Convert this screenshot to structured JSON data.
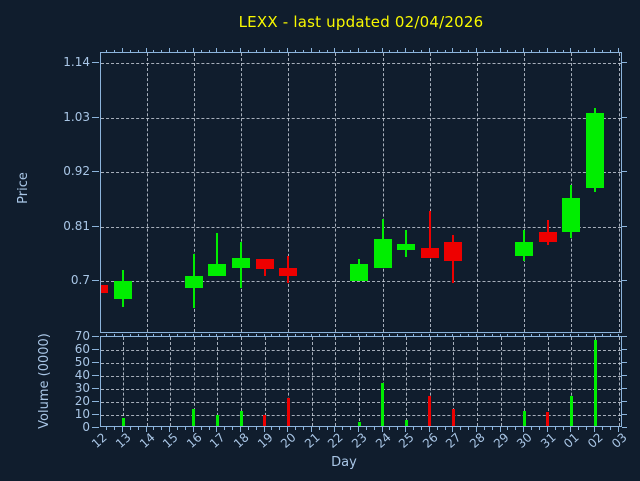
{
  "title": {
    "text": "LEXX - last updated 02/04/2026",
    "color": "#f8f800"
  },
  "colors": {
    "background": "#101d2d",
    "spine": "#8cb4dc",
    "tick_label": "#a9c6e6",
    "grid": "rgba(205,213,222,0.8)",
    "up": "#00ee00",
    "down": "#ee0000"
  },
  "price_axis": {
    "label": "Price",
    "ticks": [
      "1.14",
      "1.03",
      "0.92",
      "0.81",
      "0.7"
    ]
  },
  "volume_axis": {
    "label": "Volume (0000)",
    "ticks": [
      "70",
      "60",
      "50",
      "40",
      "30",
      "20",
      "10",
      "0"
    ]
  },
  "x_axis": {
    "label": "Day"
  },
  "chart_data": {
    "type": "candlestick",
    "title": "LEXX - last updated 02/04/2026",
    "xlabel": "Day",
    "ylabel_price": "Price",
    "ylabel_volume": "Volume (0000)",
    "legend": "none",
    "grid": true,
    "x_ticklabels": [
      "12",
      "13",
      "14",
      "15",
      "16",
      "17",
      "18",
      "19",
      "20",
      "21",
      "22",
      "23",
      "24",
      "25",
      "26",
      "27",
      "28",
      "29",
      "30",
      "31",
      "01",
      "02",
      "03"
    ],
    "price_ticks": [
      0.7,
      0.81,
      0.92,
      1.03,
      1.14
    ],
    "price_ylim": [
      0.593,
      1.161
    ],
    "volume_ticks": [
      0,
      10,
      20,
      30,
      40,
      50,
      60,
      70
    ],
    "volume_ylim": [
      0,
      70
    ],
    "up_color": "#00ee00",
    "down_color": "#ee0000",
    "candles": [
      {
        "day": "12",
        "open": 0.693,
        "high": 0.693,
        "low": 0.676,
        "close": 0.676,
        "volume": 0
      },
      {
        "day": "13",
        "open": 0.664,
        "high": 0.722,
        "low": 0.648,
        "close": 0.701,
        "volume": 8
      },
      {
        "day": "16",
        "open": 0.687,
        "high": 0.755,
        "low": 0.646,
        "close": 0.71,
        "volume": 15
      },
      {
        "day": "17",
        "open": 0.71,
        "high": 0.797,
        "low": 0.71,
        "close": 0.734,
        "volume": 10
      },
      {
        "day": "18",
        "open": 0.727,
        "high": 0.78,
        "low": 0.687,
        "close": 0.747,
        "volume": 13
      },
      {
        "day": "19",
        "open": 0.744,
        "high": 0.744,
        "low": 0.71,
        "close": 0.724,
        "volume": 10
      },
      {
        "day": "20",
        "open": 0.727,
        "high": 0.75,
        "low": 0.697,
        "close": 0.71,
        "volume": 23
      },
      {
        "day": "23",
        "open": 0.7,
        "high": 0.744,
        "low": 0.7,
        "close": 0.734,
        "volume": 5
      },
      {
        "day": "24",
        "open": 0.727,
        "high": 0.825,
        "low": 0.727,
        "close": 0.785,
        "volume": 35
      },
      {
        "day": "25",
        "open": 0.762,
        "high": 0.803,
        "low": 0.748,
        "close": 0.775,
        "volume": 6
      },
      {
        "day": "26",
        "open": 0.767,
        "high": 0.841,
        "low": 0.747,
        "close": 0.747,
        "volume": 25
      },
      {
        "day": "27",
        "open": 0.779,
        "high": 0.793,
        "low": 0.697,
        "close": 0.74,
        "volume": 15
      },
      {
        "day": "30",
        "open": 0.75,
        "high": 0.804,
        "low": 0.74,
        "close": 0.78,
        "volume": 13
      },
      {
        "day": "31",
        "open": 0.8,
        "high": 0.824,
        "low": 0.774,
        "close": 0.78,
        "volume": 12
      },
      {
        "day": "01",
        "open": 0.8,
        "high": 0.894,
        "low": 0.787,
        "close": 0.868,
        "volume": 25
      },
      {
        "day": "02",
        "open": 0.889,
        "high": 1.05,
        "low": 0.881,
        "close": 1.039,
        "volume": 68
      }
    ]
  }
}
